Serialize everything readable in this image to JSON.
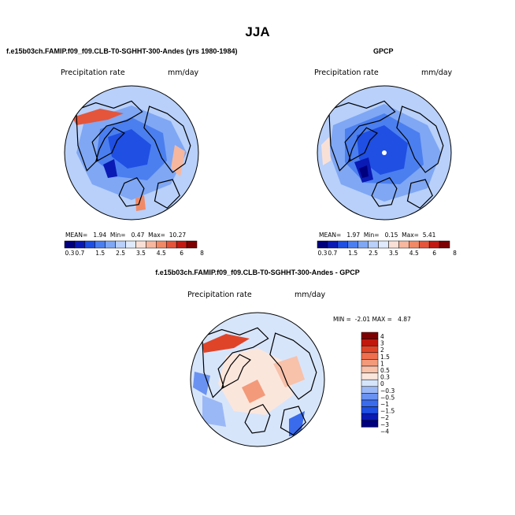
{
  "page": {
    "title": "JJA"
  },
  "colors": {
    "abs_palette": [
      "#00007f",
      "#0a1ab4",
      "#1f4fe3",
      "#4b7ff0",
      "#7fa7f4",
      "#b8d0fa",
      "#dfeafc",
      "#f9e0d6",
      "#f6b79e",
      "#f08a66",
      "#e4553b",
      "#c21a12",
      "#7f0000"
    ],
    "diff_palette": [
      "#00007f",
      "#0a1ab4",
      "#1f4fe3",
      "#3a6bed",
      "#6a92f2",
      "#9bb8f6",
      "#d7e5fb",
      "#fbe6dc",
      "#f8c1aa",
      "#f39a7a",
      "#ee6e4e",
      "#e04428",
      "#c1180e",
      "#7f0000"
    ],
    "land_outline": "#000000",
    "pole_marker": "#ffffff"
  },
  "chart_data": [
    {
      "type": "heatmap",
      "projection": "north-polar-stereographic",
      "subtitle": "f.e15b03ch.FAMIP.f09_f09.CLB-T0-SGHHT-300-Andes (yrs 1980-1984)",
      "field_label": "Precipitation rate",
      "units": "mm/day",
      "stats": {
        "mean_label": "MEAN=",
        "mean": "1.94",
        "min_label": "Min=",
        "min": "0.47",
        "max_label": "Max=",
        "max": "10.27"
      },
      "colorbar": {
        "orientation": "horizontal",
        "levels": [
          "0.3",
          "0.7",
          "1",
          "1.5",
          "2",
          "2.5",
          "3",
          "3.5",
          "4",
          "4.5",
          "5",
          "6",
          "7",
          "8"
        ],
        "tick_labels": [
          "0.3",
          "0.7",
          "1.5",
          "2.5",
          "3.5",
          "4.5",
          "6",
          "8"
        ]
      }
    },
    {
      "type": "heatmap",
      "projection": "north-polar-stereographic",
      "subtitle": "GPCP",
      "field_label": "Precipitation rate",
      "units": "mm/day",
      "stats": {
        "mean_label": "MEAN=",
        "mean": "1.97",
        "min_label": "Min=",
        "min": "0.15",
        "max_label": "Max=",
        "max": "5.41"
      },
      "colorbar": {
        "orientation": "horizontal",
        "levels": [
          "0.3",
          "0.7",
          "1",
          "1.5",
          "2",
          "2.5",
          "3",
          "3.5",
          "4",
          "4.5",
          "5",
          "6",
          "7",
          "8"
        ],
        "tick_labels": [
          "0.3",
          "0.7",
          "1.5",
          "2.5",
          "3.5",
          "4.5",
          "6",
          "8"
        ]
      }
    },
    {
      "type": "heatmap",
      "projection": "north-polar-stereographic",
      "subtitle": "f.e15b03ch.FAMIP.f09_f09.CLB-T0-SGHHT-300-Andes - GPCP",
      "field_label": "Precipitation rate",
      "units": "mm/day",
      "stats": {
        "min_label": "MIN =",
        "min": "-2.01",
        "max_label": "MAX =",
        "max": "4.87"
      },
      "colorbar": {
        "orientation": "vertical",
        "tick_labels": [
          "4",
          "3",
          "2",
          "1.5",
          "1",
          "0.5",
          "0.3",
          "0",
          "−0.3",
          "−0.5",
          "−1",
          "−1.5",
          "−2",
          "−3",
          "−4"
        ]
      }
    }
  ]
}
